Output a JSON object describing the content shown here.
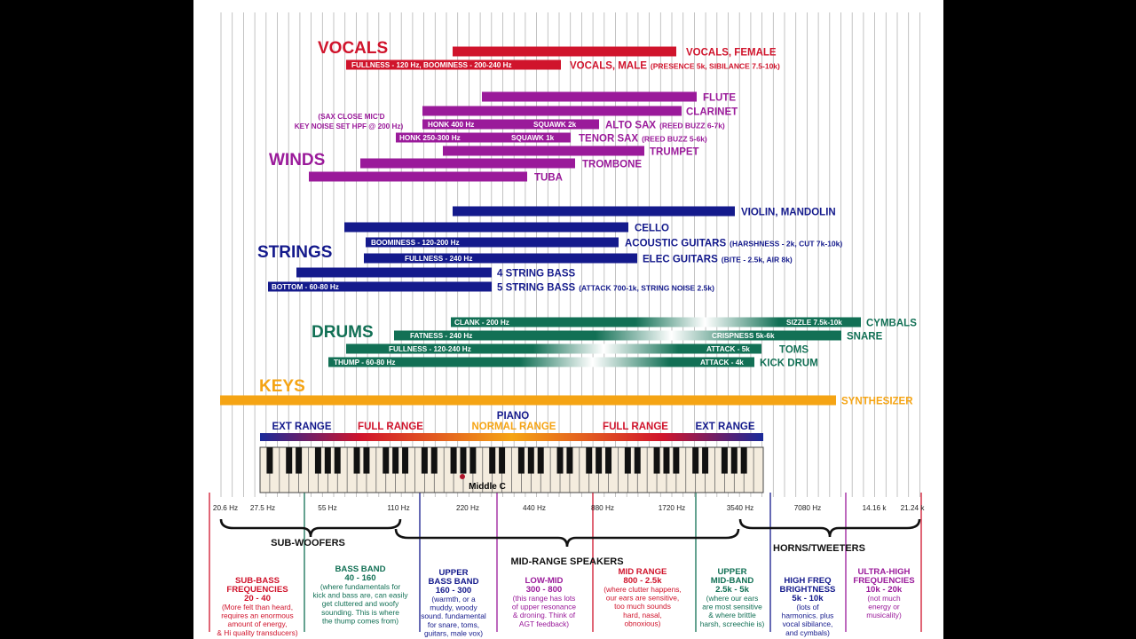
{
  "colors": {
    "vocals": "#d0142c",
    "winds": "#9a1a9a",
    "strings": "#141a8c",
    "drums": "#127055",
    "keys": "#f5a414",
    "grid": "#b4b4b4"
  },
  "sections": {
    "vocals": "VOCALS",
    "winds": "WINDS",
    "strings": "STRINGS",
    "drums": "DRUMS",
    "keys": "KEYS"
  },
  "instruments": [
    {
      "group": "vocals",
      "label": "VOCALS, FEMALE"
    },
    {
      "group": "vocals",
      "label": "VOCALS, MALE",
      "detail": "(PRESENCE 5k, SIBILANCE 7.5-10k)",
      "inner": "FULLNESS - 120 Hz, BOOMINESS - 200-240 Hz"
    },
    {
      "group": "winds",
      "label": "FLUTE"
    },
    {
      "group": "winds",
      "label": "CLARINET"
    },
    {
      "group": "winds",
      "label": "ALTO SAX",
      "detail": "(REED BUZZ 6-7k)",
      "inner": "HONK 400 Hz",
      "inner2": "SQUAWK  2k"
    },
    {
      "group": "winds",
      "label": "TENOR SAX",
      "detail": "(REED BUZZ 5-6k)",
      "inner": "HONK 250-300 Hz",
      "inner2": "SQUAWK  1k"
    },
    {
      "group": "winds",
      "label": "TRUMPET"
    },
    {
      "group": "winds",
      "label": "TROMBONE"
    },
    {
      "group": "winds",
      "label": "TUBA"
    },
    {
      "group": "strings",
      "label": "VIOLIN, MANDOLIN"
    },
    {
      "group": "strings",
      "label": "CELLO"
    },
    {
      "group": "strings",
      "label": "ACOUSTIC GUITARS",
      "detail": "(HARSHNESS - 2k, CUT 7k-10k)",
      "inner": "BOOMINESS - 120-200 Hz"
    },
    {
      "group": "strings",
      "label": "ELEC GUITARS",
      "detail": "(BITE - 2.5k, AIR 8k)",
      "inner": "FULLNESS - 240 Hz"
    },
    {
      "group": "strings",
      "label": "4 STRING BASS"
    },
    {
      "group": "strings",
      "label": "5 STRING BASS",
      "detail": "(ATTACK 700-1k, STRING NOISE 2.5k)",
      "inner": "BOTTOM - 60-80 Hz"
    },
    {
      "group": "drums",
      "label": "CYMBALS",
      "inner": "CLANK - 200 Hz",
      "inner2": "SIZZLE 7.5k-10k"
    },
    {
      "group": "drums",
      "label": "SNARE",
      "inner": "FATNESS - 240 Hz",
      "inner2": "CRISPNESS 5k-6k"
    },
    {
      "group": "drums",
      "label": "TOMS",
      "inner": "FULLNESS - 120-240 Hz",
      "inner2": "ATTACK - 5k"
    },
    {
      "group": "drums",
      "label": "KICK DRUM",
      "inner": "THUMP - 60-80 Hz",
      "inner2": "ATTACK - 4k"
    },
    {
      "group": "keys",
      "label": "SYNTHESIZER"
    }
  ],
  "sax_note": [
    "(SAX CLOSE MIC'D",
    "KEY NOISE SET HPF @ 200 Hz)"
  ],
  "piano": {
    "title": "PIANO",
    "ext_left": "EXT RANGE",
    "full_left": "FULL RANGE",
    "normal": "NORMAL RANGE",
    "full_right": "FULL RANGE",
    "ext_right": "EXT RANGE",
    "middle_c": "Middle C"
  },
  "freq_labels": [
    "20.6 Hz",
    "27.5 Hz",
    "55 Hz",
    "110 Hz",
    "220 Hz",
    "440 Hz",
    "880 Hz",
    "1720 Hz",
    "3540 Hz",
    "7080 Hz",
    "14.16 k",
    "21.24 k"
  ],
  "speakers": {
    "subwoofers": "SUB-WOOFERS",
    "midrange": "MID-RANGE SPEAKERS",
    "tweeters": "HORNS/TWEETERS"
  },
  "bands": [
    {
      "title": [
        "SUB-BASS",
        "FREQUENCIES",
        "20 - 40"
      ],
      "desc": [
        "(More felt than heard,",
        "requires an enormous",
        "amount of energy,",
        "& Hi quality transducers)"
      ],
      "color": "#d0142c"
    },
    {
      "title": [
        "BASS BAND",
        "40 - 160"
      ],
      "desc": [
        "(where fundamentals for",
        "kick and bass are, can easily",
        "get cluttered and woofy",
        "sounding. This is where",
        "the thump comes from)"
      ],
      "color": "#127055"
    },
    {
      "title": [
        "UPPER",
        "BASS BAND",
        "160 - 300"
      ],
      "desc": [
        "(warmth, or a",
        "muddy, woody",
        "sound. fundamental",
        "for snare, toms,",
        "guitars, male vox)"
      ],
      "color": "#141a8c"
    },
    {
      "title": [
        "LOW-MID",
        "300 - 800"
      ],
      "desc": [
        "(this range has lots",
        "of upper resonance",
        "& droning. Think of",
        "AGT feedback)"
      ],
      "color": "#9a1a9a"
    },
    {
      "title": [
        "MID RANGE",
        "800 - 2.5k"
      ],
      "desc": [
        "(where clutter happens,",
        "our ears are sensitive,",
        "too much sounds",
        "hard, nasal,",
        "obnoxious)"
      ],
      "color": "#d0142c"
    },
    {
      "title": [
        "UPPER",
        "MID-BAND",
        "2.5k - 5k"
      ],
      "desc": [
        "(where our ears",
        "are most sensitive",
        "& where brittle",
        "harsh, screechie is)"
      ],
      "color": "#127055"
    },
    {
      "title": [
        "HIGH FREQ",
        "BRIGHTNESS",
        "5k - 10k"
      ],
      "desc": [
        "(lots of",
        "harmonics. plus",
        "vocal sibilance,",
        "and cymbals)"
      ],
      "color": "#141a8c"
    },
    {
      "title": [
        "ULTRA-HIGH",
        "FREQUENCIES",
        "10k - 20k"
      ],
      "desc": [
        "(not much",
        "energy or",
        "musicality)"
      ],
      "color": "#9a1a9a"
    }
  ]
}
